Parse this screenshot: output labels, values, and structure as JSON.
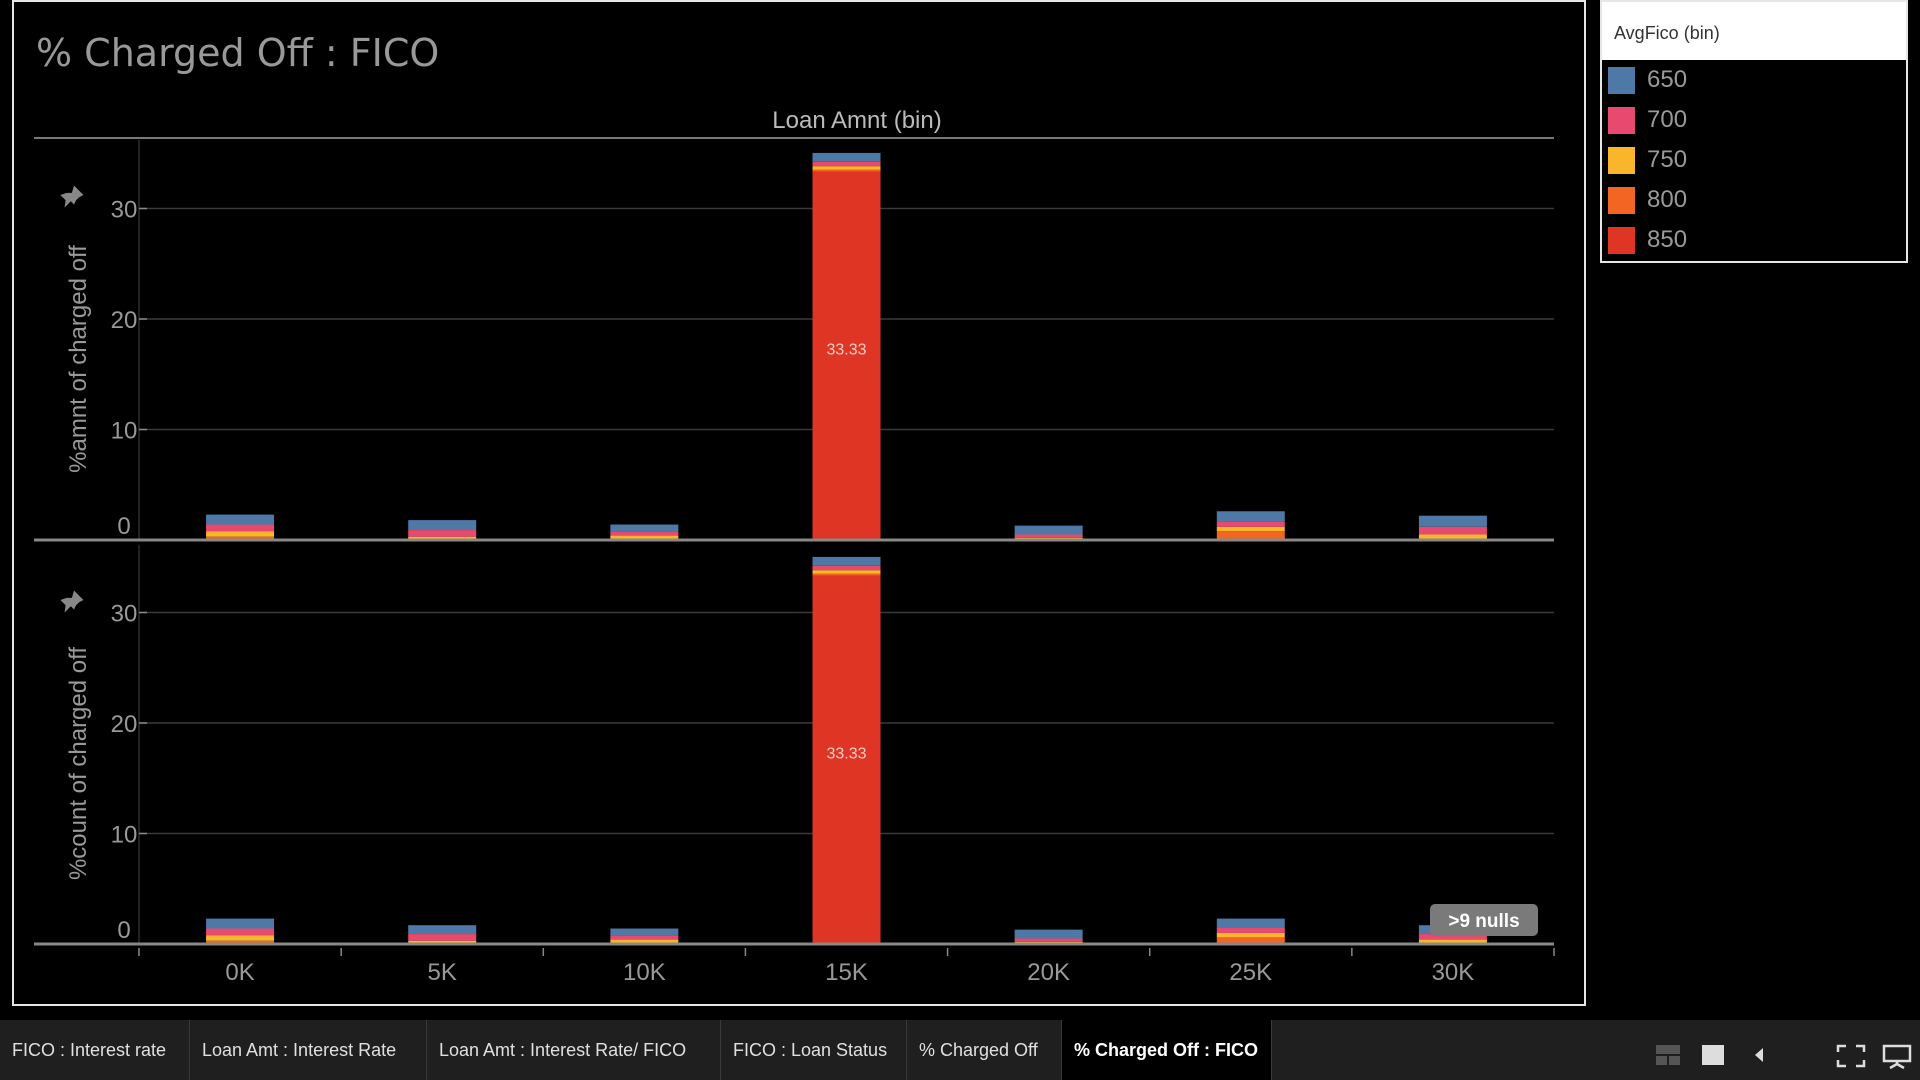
{
  "chart_data": {
    "type": "bar",
    "stacked": true,
    "title": "% Charged Off : FICO",
    "column_header": "Loan Amnt (bin)",
    "categories": [
      "0K",
      "5K",
      "10K",
      "15K",
      "20K",
      "25K",
      "30K"
    ],
    "series_colors": {
      "650": "#4e79a7",
      "700": "#e8496f",
      "750": "#f9b62a",
      "800": "#f26522",
      "850": "#df3524"
    },
    "grid": true,
    "panels": [
      {
        "ylabel": "%amnt of charged off",
        "ylim": [
          0,
          35
        ],
        "yticks": [
          0,
          10,
          20,
          30
        ],
        "series": [
          {
            "name": "850",
            "values": [
              0,
              0,
              0,
              33.33,
              0,
              0,
              0
            ]
          },
          {
            "name": "800",
            "values": [
              0.3,
              0,
              0,
              0.2,
              0,
              0.8,
              0
            ]
          },
          {
            "name": "750",
            "values": [
              0.5,
              0.3,
              0.4,
              0.3,
              0.2,
              0.4,
              0.5
            ]
          },
          {
            "name": "700",
            "values": [
              0.6,
              0.6,
              0.4,
              0.4,
              0.3,
              0.5,
              0.7
            ]
          },
          {
            "name": "650",
            "values": [
              0.9,
              0.9,
              0.6,
              0.8,
              0.8,
              0.9,
              1.0
            ]
          }
        ],
        "data_labels": [
          {
            "category": "15K",
            "text": "33.33"
          }
        ]
      },
      {
        "ylabel": "%count of charged off",
        "ylim": [
          0,
          35
        ],
        "yticks": [
          0,
          10,
          20,
          30
        ],
        "series": [
          {
            "name": "850",
            "values": [
              0,
              0,
              0,
              33.33,
              0,
              0,
              0
            ]
          },
          {
            "name": "800",
            "values": [
              0.3,
              0,
              0,
              0.2,
              0,
              0.6,
              0
            ]
          },
          {
            "name": "750",
            "values": [
              0.5,
              0.3,
              0.4,
              0.3,
              0.2,
              0.4,
              0.4
            ]
          },
          {
            "name": "700",
            "values": [
              0.6,
              0.6,
              0.4,
              0.4,
              0.3,
              0.5,
              0.5
            ]
          },
          {
            "name": "650",
            "values": [
              0.9,
              0.8,
              0.6,
              0.8,
              0.8,
              0.8,
              0.8
            ]
          }
        ],
        "data_labels": [
          {
            "category": "15K",
            "text": "33.33"
          }
        ]
      }
    ],
    "nulls_badge": ">9 nulls"
  },
  "legend": {
    "title": "AvgFico (bin)",
    "items": [
      {
        "label": "650",
        "color": "#4e79a7"
      },
      {
        "label": "700",
        "color": "#e8496f"
      },
      {
        "label": "750",
        "color": "#f9b62a"
      },
      {
        "label": "800",
        "color": "#f26522"
      },
      {
        "label": "850",
        "color": "#df3524"
      }
    ]
  },
  "tabs": [
    {
      "label": "FICO : Interest rate",
      "active": false
    },
    {
      "label": "Loan Amt : Interest Rate",
      "active": false
    },
    {
      "label": "Loan Amt : Interest Rate/ FICO",
      "active": false
    },
    {
      "label": "FICO : Loan Status",
      "active": false
    },
    {
      "label": "% Charged Off",
      "active": false
    },
    {
      "label": "% Charged Off : FICO",
      "active": true
    }
  ],
  "controls": [
    "grid-view-icon",
    "single-view-icon",
    "back-icon",
    "fullscreen-icon",
    "presentation-icon"
  ]
}
